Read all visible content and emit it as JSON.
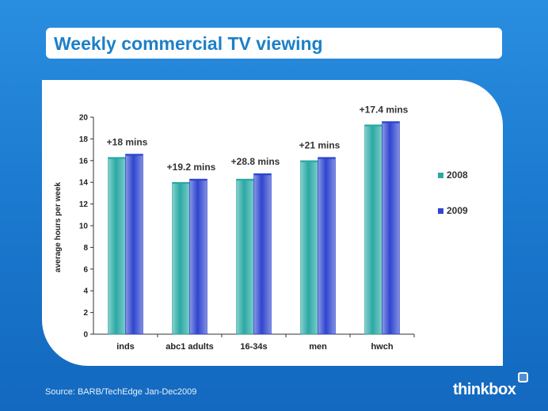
{
  "title": "Weekly commercial TV viewing",
  "source": "Source: BARB/TechEdge Jan-Dec2009",
  "logo_text": "thinkbox",
  "colors": {
    "background": "#1f7fd0",
    "title_text": "#1d80c8",
    "series_2008": "#2aa9a4",
    "series_2009": "#2f45cf"
  },
  "chart_data": {
    "type": "bar",
    "categories": [
      "inds",
      "abc1 adults",
      "16-34s",
      "men",
      "hwch"
    ],
    "series": [
      {
        "name": "2008",
        "values": [
          16.3,
          14.0,
          14.3,
          16.0,
          19.3
        ]
      },
      {
        "name": "2009",
        "values": [
          16.6,
          14.3,
          14.8,
          16.3,
          19.6
        ]
      }
    ],
    "annotations": [
      "+18 mins",
      "+19.2 mins",
      "+28.8 mins",
      "+21 mins",
      "+17.4 mins"
    ],
    "ylabel": "average hours per week",
    "xlabel": "",
    "ylim": [
      0,
      20
    ],
    "yticks": [
      0,
      2,
      4,
      6,
      8,
      10,
      12,
      14,
      16,
      18,
      20
    ],
    "legend_position": "right",
    "grid": false
  }
}
